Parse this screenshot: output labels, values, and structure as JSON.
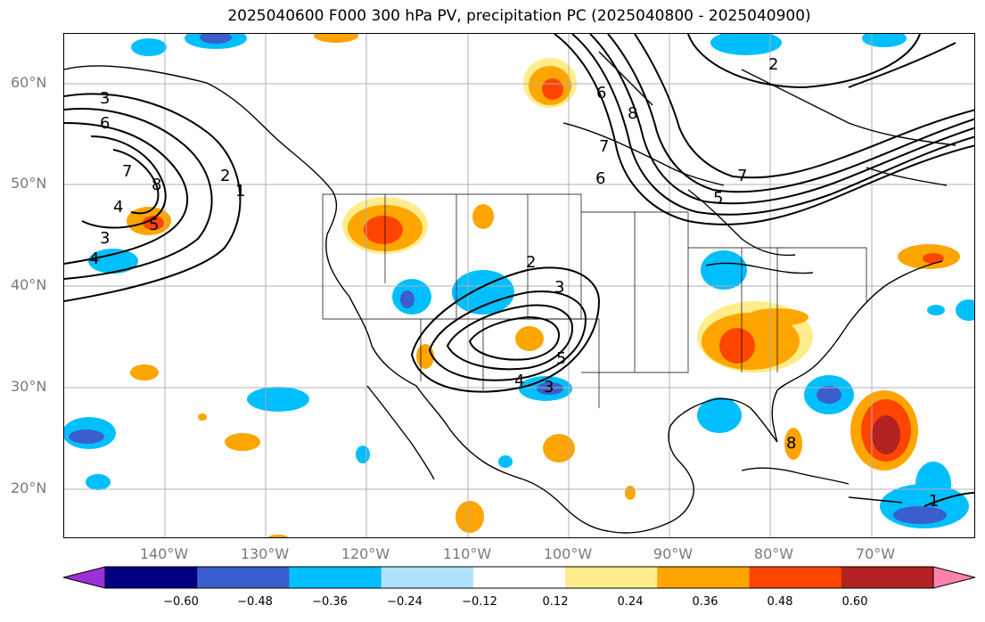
{
  "title": "2025040600 F000 300 hPa PV, precipitation PC (2025040800 - 2025040900)",
  "lat_labels": [
    "60°N",
    "50°N",
    "40°N",
    "30°N",
    "20°N"
  ],
  "lon_labels": [
    "140°W",
    "130°W",
    "120°W",
    "110°W",
    "100°W",
    "90°W",
    "80°W",
    "70°W"
  ],
  "colorbar": {
    "ticks": [
      "−0.60",
      "−0.48",
      "−0.36",
      "−0.24",
      "−0.12",
      "0.12",
      "0.24",
      "0.36",
      "0.48",
      "0.60"
    ],
    "colors": [
      "#9b30d9",
      "#000080",
      "#3a5fcd",
      "#00bfff",
      "#b0e2ff",
      "#ffffff",
      "#ffec8b",
      "#ffa500",
      "#ff4500",
      "#b22222",
      "#ff82ab"
    ]
  },
  "contour_labels": [
    "3",
    "6",
    "7",
    "8",
    "2",
    "1",
    "4",
    "3",
    "4",
    "5",
    "2",
    "3",
    "5",
    "4",
    "3",
    "6",
    "8",
    "7",
    "5",
    "6",
    "7",
    "2",
    "1",
    "8"
  ],
  "colors": {
    "contour": "#000000",
    "coast": "#000000",
    "grid": "#b0b0b0",
    "tick_label": "#7a7a7a"
  }
}
